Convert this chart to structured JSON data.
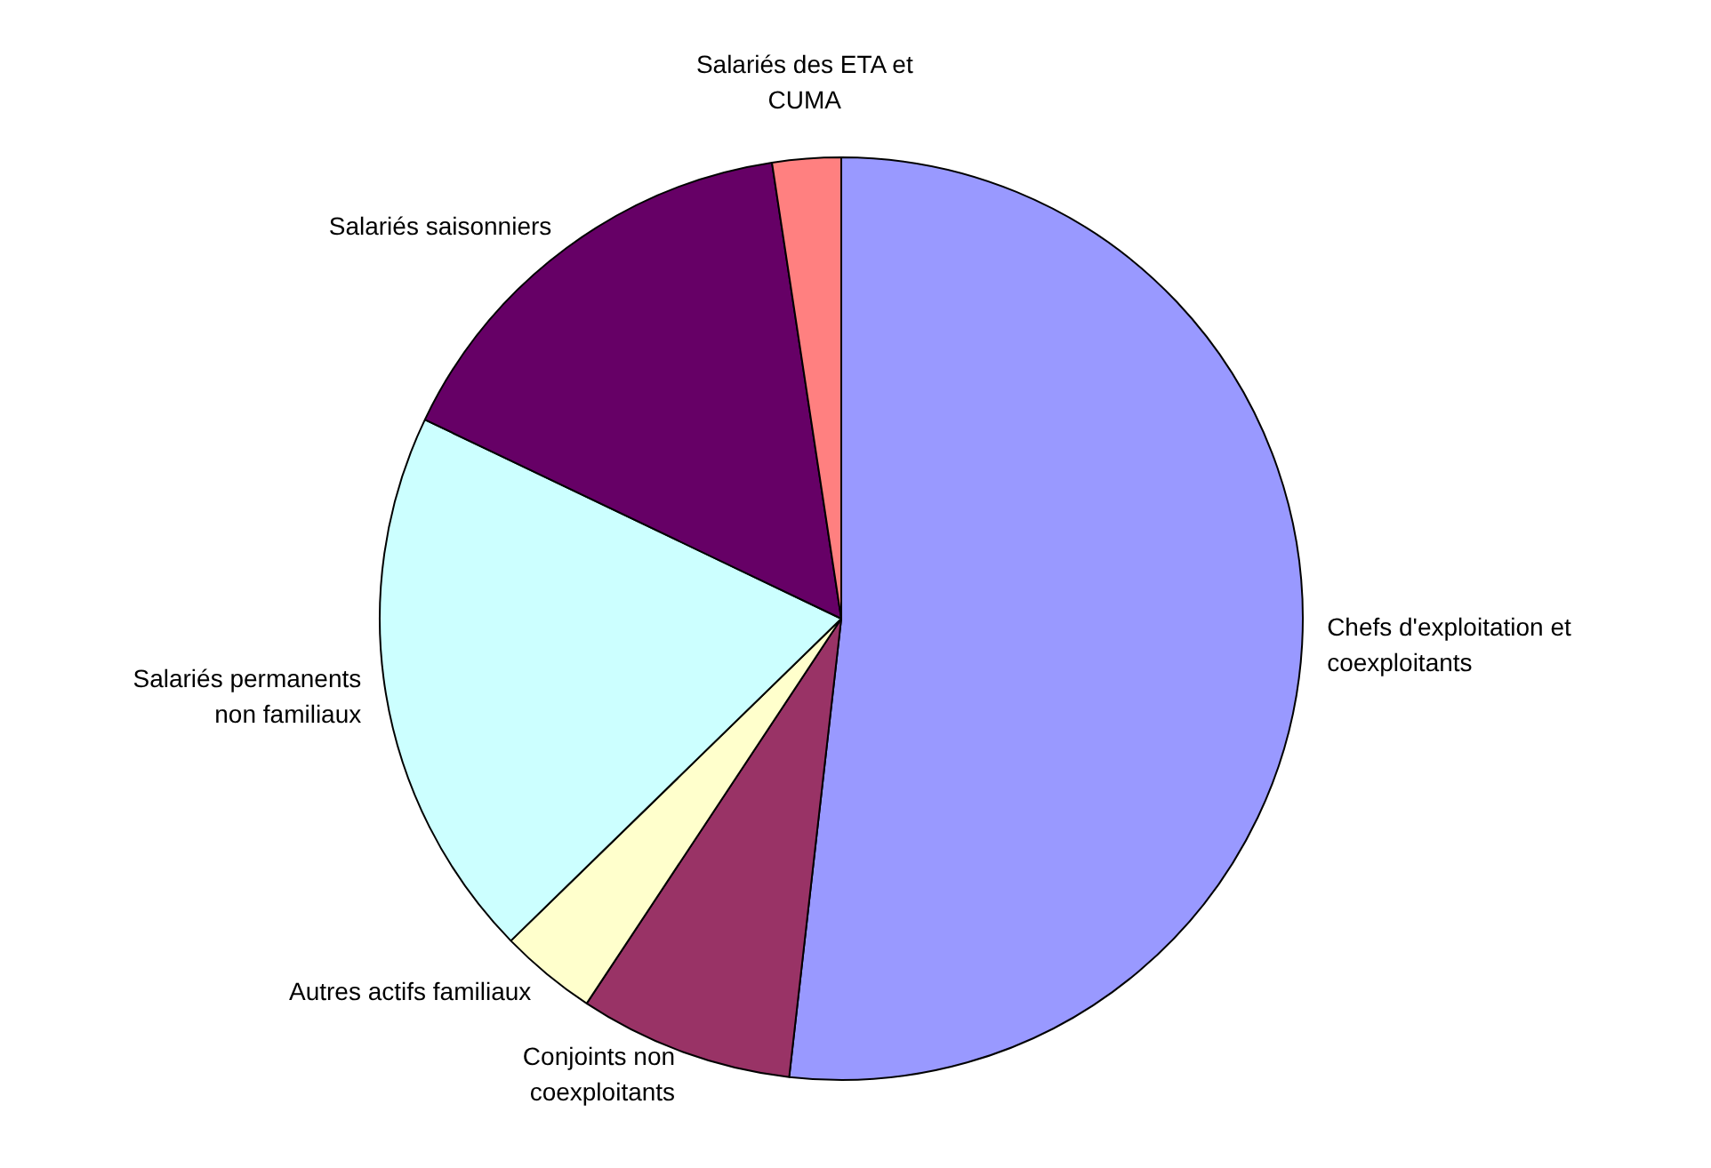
{
  "chart_data": {
    "type": "pie",
    "categories": [
      "Chefs d'exploitation et coexploitants",
      "Conjoints non coexploitants",
      "Autres actifs familiaux",
      "Salariés permanents non familiaux",
      "Salariés saisonniers",
      "Salariés des ETA et CUMA"
    ],
    "values": [
      51.8,
      7.5,
      3.4,
      19.4,
      15.5,
      2.4
    ],
    "colors": [
      "#9999ff",
      "#993366",
      "#ffffcc",
      "#ccffff",
      "#660066",
      "#ff8080"
    ],
    "legend": false
  }
}
